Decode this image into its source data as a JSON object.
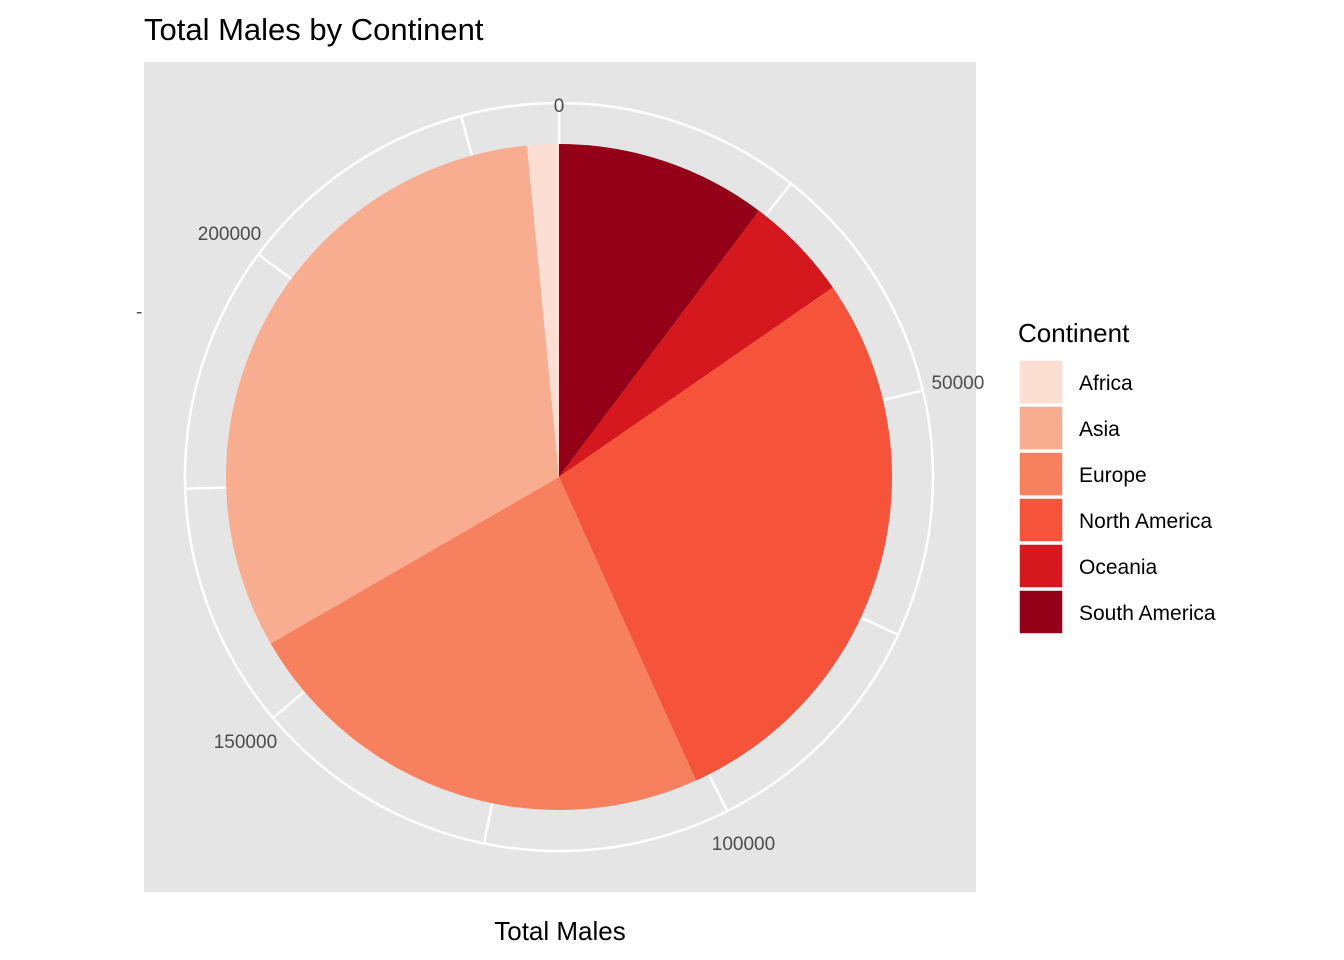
{
  "chart_data": {
    "type": "pie",
    "title": "Total Males by Continent",
    "xlabel": "Total Males",
    "ylabel": "-",
    "legend_title": "Continent",
    "legend_position": "right",
    "grid": true,
    "radial_ticks": [
      {
        "value": 0,
        "label": "0"
      },
      {
        "value": 50000,
        "label": "50000"
      },
      {
        "value": 100000,
        "label": "100000"
      },
      {
        "value": 150000,
        "label": "150000"
      },
      {
        "value": 200000,
        "label": "200000"
      }
    ],
    "categories": [
      "Africa",
      "Asia",
      "Europe",
      "North America",
      "Oceania",
      "South America"
    ],
    "values": [
      3600,
      74700,
      55000,
      65500,
      12000,
      24100
    ],
    "colors": [
      "#FCDED3",
      "#F8AC90",
      "#F7815F",
      "#F5543B",
      "#D5181E",
      "#940017"
    ],
    "panel_background": "#E5E5E5",
    "grid_color": "#FFFFFF"
  }
}
